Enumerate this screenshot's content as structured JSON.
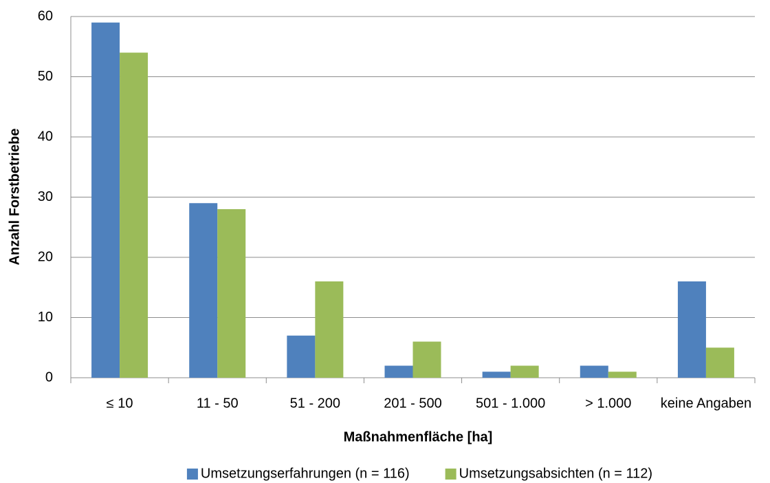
{
  "chart_data": {
    "type": "bar",
    "xlabel": "Maßnahmenfläche [ha]",
    "ylabel": "Anzahl Forstbetriebe",
    "categories": [
      "≤ 10",
      "11 - 50",
      "51 - 200",
      "201 - 500",
      "501 - 1.000",
      "> 1.000",
      "keine Angaben"
    ],
    "series": [
      {
        "name": "Umsetzungserfahrungen (n = 116)",
        "color": "#4f81bd",
        "values": [
          59,
          29,
          7,
          2,
          1,
          2,
          16
        ]
      },
      {
        "name": "Umsetzungsabsichten (n = 112)",
        "color": "#9bbb59",
        "values": [
          54,
          28,
          16,
          6,
          2,
          1,
          5
        ]
      }
    ],
    "ylim": [
      0,
      60
    ],
    "yticks": [
      0,
      10,
      20,
      30,
      40,
      50,
      60
    ],
    "grid": true,
    "legend": "bottom"
  }
}
